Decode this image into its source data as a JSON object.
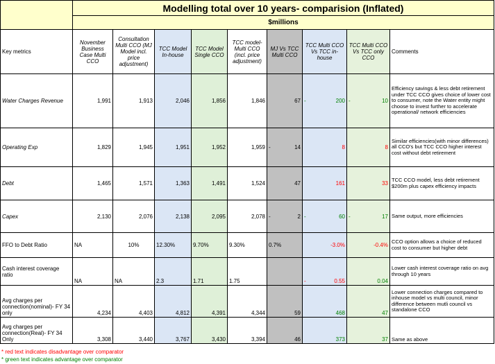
{
  "title": "Modelling total over 10 years- comparision (Inflated)",
  "subtitle": "$millions",
  "headers": {
    "metric": "Key metrics",
    "col1": "November Business Case Multi CCO",
    "col2": "Consultation Multi CCO (MJ Model incl. price adjustment)",
    "col3": "TCC Model In-house",
    "col4": "TCC Model Single CCO",
    "col5": "TCC model- Multi CCO (incl. price adjustment)",
    "col6": "MJ Vs TCC Multi CCO",
    "col7": "TCC Multi CCO Vs TCC in-house",
    "col8": "TCC Multi CCO Vs TCC only CCO",
    "comments": "Comments"
  },
  "rows": [
    {
      "metric": "Water Charges Revenue",
      "c1": "1,991",
      "c2": "1,913",
      "c3": "2,046",
      "c4": "1,856",
      "c5": "1,846",
      "c6": "67",
      "c7": "200",
      "c8": "10",
      "comment": "Efficiency savings & less debt retirement under TCC CCO gives choice of lower cost to consumer, note the Water entity might choose to invest further to accelerate operational/ network efficiencies"
    },
    {
      "metric": "Operating Exp",
      "c1": "1,829",
      "c2": "1,945",
      "c3": "1,951",
      "c4": "1,952",
      "c5": "1,959",
      "c6": "14",
      "c7": "8",
      "c8": "8",
      "comment": "Similar efficiencies(with minor differences) all CCO's but TCC CCO higher interest cost without debt retirement"
    },
    {
      "metric": "Debt",
      "c1": "1,465",
      "c2": "1,571",
      "c3": "1,363",
      "c4": "1,491",
      "c5": "1,524",
      "c6": "47",
      "c7": "161",
      "c8": "33",
      "comment": "TCC CCO model, less debt retirement $200m plus capex efficiency impacts"
    },
    {
      "metric": "Capex",
      "c1": "2,130",
      "c2": "2,076",
      "c3": "2,138",
      "c4": "2,095",
      "c5": "2,078",
      "c6": "2",
      "c7": "60",
      "c8": "17",
      "comment": "Same output, more efficiencies"
    },
    {
      "metric": "FFO to Debt Ratio",
      "c1": "NA",
      "c2": "10%",
      "c3": "12.30%",
      "c4": "9.70%",
      "c5": "9.30%",
      "c6": "0.7%",
      "c7": "-3.0%",
      "c8": "-0.4%",
      "comment": "CCO option allows a choice of reduced cost to consumer but higher debt"
    },
    {
      "metric": "Cash interest coverage ratio",
      "c1": "NA",
      "c2": "NA",
      "c3": "2.3",
      "c4": "1.71",
      "c5": "1.75",
      "c6": "",
      "c7": "0.55",
      "c8": "0.04",
      "comment": "Lower cash interest coverage ratio on avg through 10 years"
    },
    {
      "metric": "Avg charges per connection(nominal)- FY 34 only",
      "c1": "4,234",
      "c2": "4,403",
      "c3": "4,812",
      "c4": "4,391",
      "c5": "4,344",
      "c6": "59",
      "c7": "468",
      "c8": "47",
      "comment": "Lower connection charges compared to inhouse model vs multi council, minor difference between mutli council vs standalone CCO"
    },
    {
      "metric": "Avg charges per connection(Real)- FY 34 Only",
      "c1": "3,308",
      "c2": "3,440",
      "c3": "3,767",
      "c4": "3,430",
      "c5": "3,394",
      "c6": "46",
      "c7": "373",
      "c8": "37",
      "comment": "Same as above"
    }
  ],
  "dash": "-",
  "footnotes": {
    "red": "* red text indicates disadvantage over comparator",
    "green": "* green text indicates advantage over comparator"
  }
}
